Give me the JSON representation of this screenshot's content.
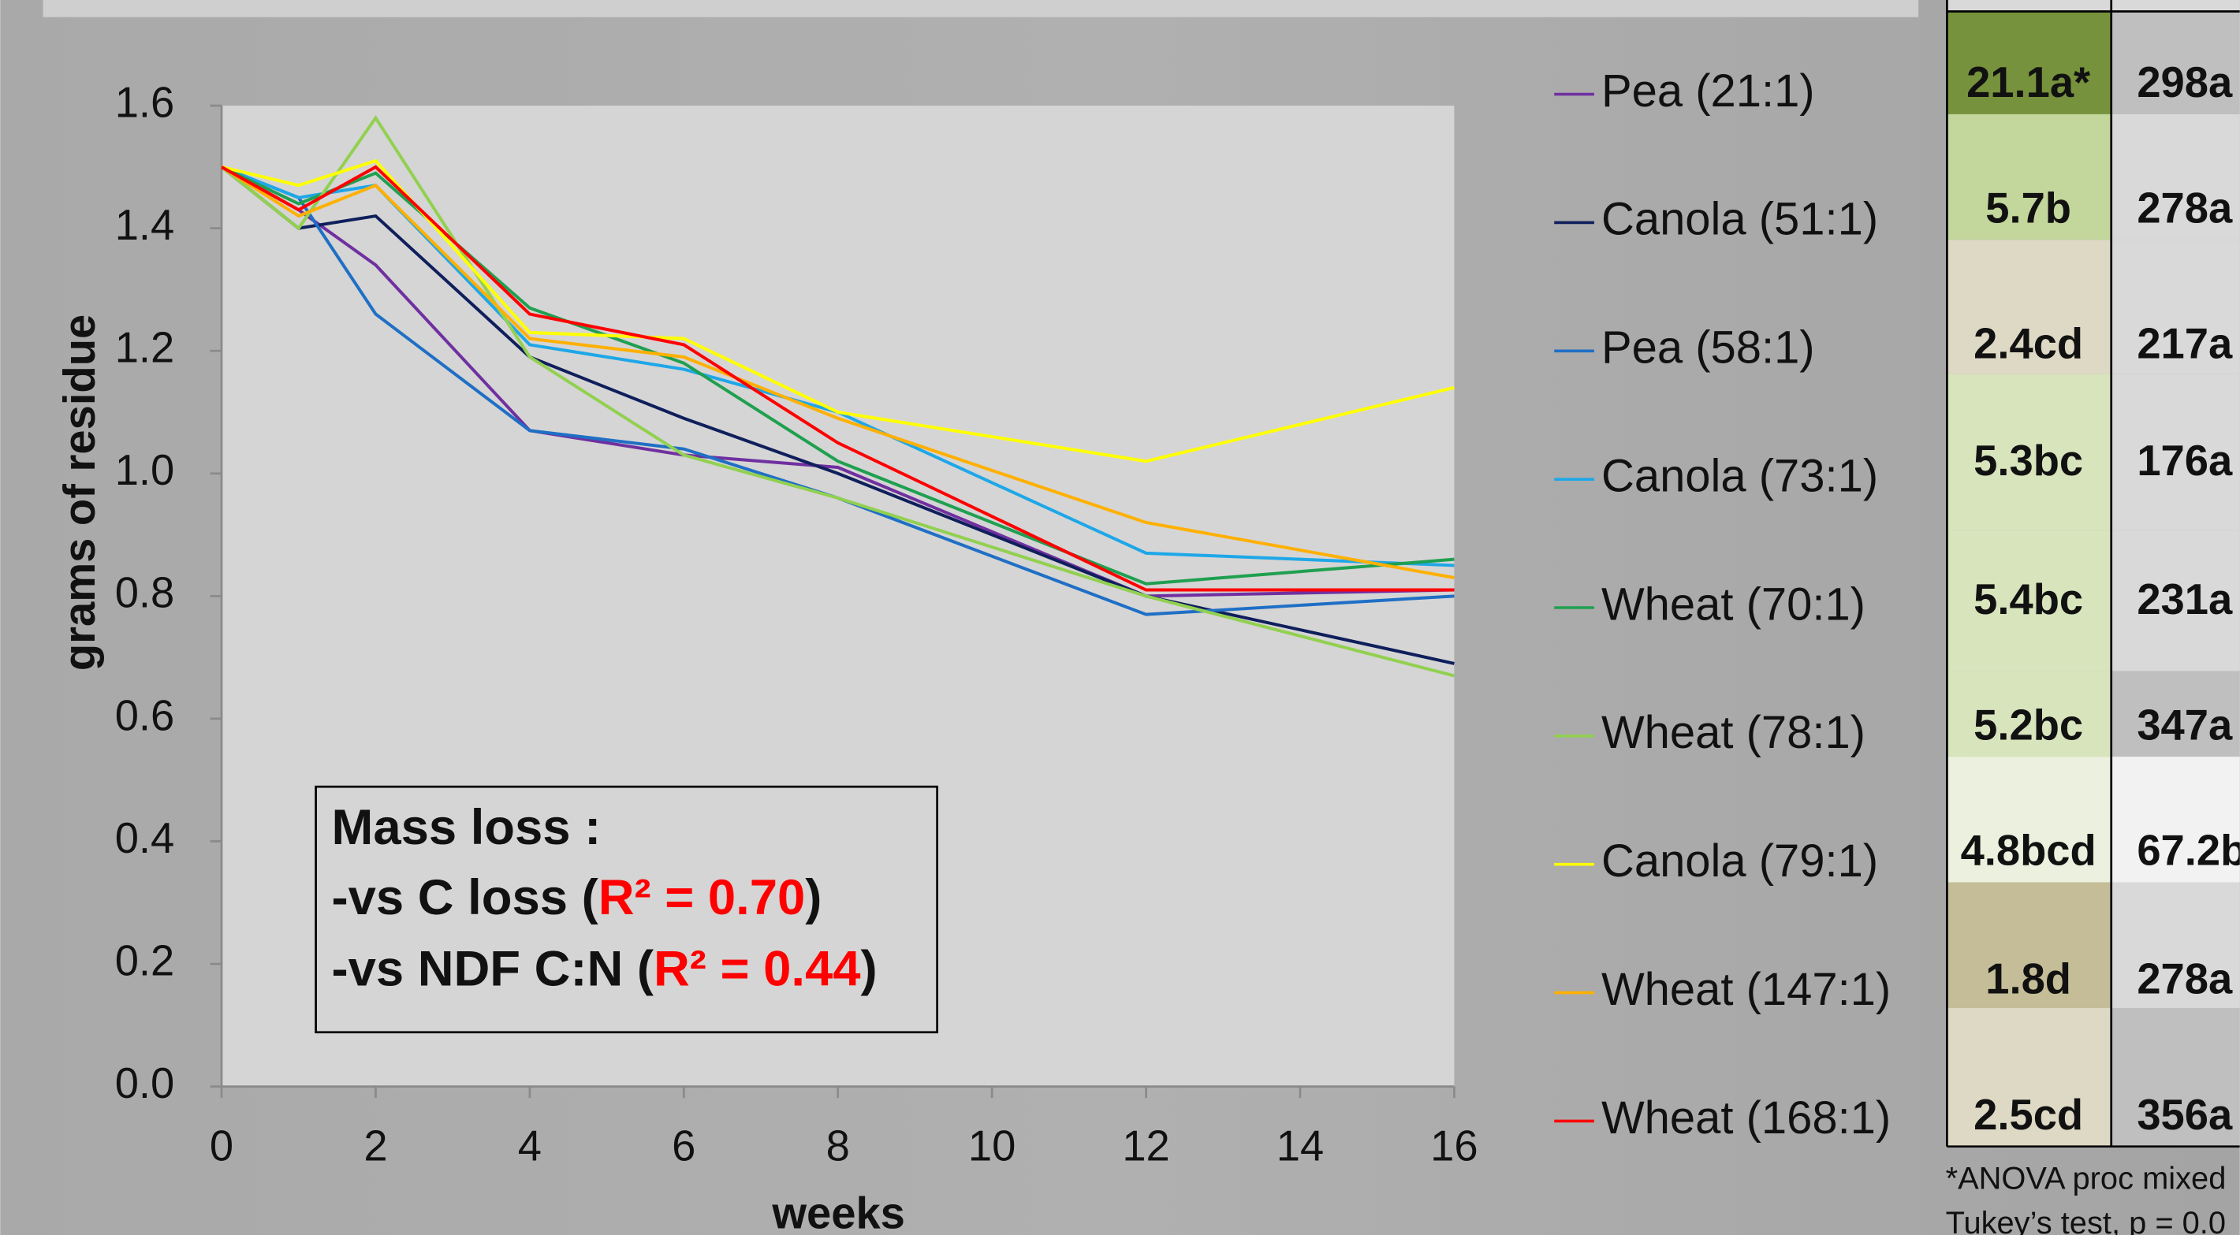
{
  "chart_data": {
    "type": "line",
    "x": [
      0,
      1,
      2,
      4,
      6,
      8,
      12,
      16
    ],
    "xlim": [
      0,
      16
    ],
    "xticks": [
      0,
      2,
      4,
      6,
      8,
      10,
      12,
      14,
      16
    ],
    "ylim": [
      0,
      1.6
    ],
    "yticks": [
      {
        "value": 0,
        "label": "0.0"
      },
      0.2,
      0.4,
      0.6,
      0.8,
      {
        "value": 1,
        "label": "1.0"
      },
      1.2,
      1.4,
      1.6
    ],
    "x_label": "weeks",
    "y_label": "grams of residue",
    "grid": false,
    "series": [
      {
        "name": "Pea (21:1)",
        "color": "#7030a0",
        "values": [
          1.5,
          1.43,
          1.34,
          1.07,
          1.03,
          1.01,
          0.8,
          0.81
        ]
      },
      {
        "name": "Canola (51:1)",
        "color": "#0f1f5c",
        "values": [
          1.5,
          1.4,
          1.42,
          1.19,
          1.09,
          1.0,
          0.8,
          0.69
        ]
      },
      {
        "name": "Pea (58:1)",
        "color": "#1f6fc5",
        "values": [
          1.5,
          1.45,
          1.26,
          1.07,
          1.04,
          0.96,
          0.77,
          0.8
        ]
      },
      {
        "name": "Canola (73:1)",
        "color": "#1ea7e8",
        "values": [
          1.5,
          1.45,
          1.47,
          1.21,
          1.17,
          1.1,
          0.87,
          0.85
        ]
      },
      {
        "name": "Wheat (70:1)",
        "color": "#1fa050",
        "values": [
          1.5,
          1.44,
          1.49,
          1.27,
          1.18,
          1.02,
          0.82,
          0.86
        ]
      },
      {
        "name": "Wheat (78:1)",
        "color": "#92d050",
        "values": [
          1.5,
          1.4,
          1.58,
          1.19,
          1.03,
          0.96,
          0.8,
          0.67
        ]
      },
      {
        "name": "Canola (79:1)",
        "color": "#ffff00",
        "values": [
          1.5,
          1.47,
          1.51,
          1.23,
          1.22,
          1.1,
          1.02,
          1.14
        ]
      },
      {
        "name": "Wheat (147:1)",
        "color": "#ffb000",
        "values": [
          1.5,
          1.42,
          1.47,
          1.22,
          1.19,
          1.09,
          0.92,
          0.83
        ]
      },
      {
        "name": "Wheat (168:1)",
        "color": "#ff0000",
        "values": [
          1.5,
          1.43,
          1.5,
          1.26,
          1.21,
          1.05,
          0.81,
          0.81
        ]
      }
    ],
    "annotation": {
      "title": "Mass loss :",
      "lines": [
        [
          "-vs C loss (",
          "R² = 0.70",
          ")"
        ],
        [
          "-vs NDF C:N (",
          "R² = 0.44",
          ")"
        ]
      ]
    }
  },
  "table": {
    "rows": [
      [
        "21.1a*",
        "298a"
      ],
      [
        "5.7b",
        "278a"
      ],
      [
        "2.4cd",
        "217a"
      ],
      [
        "5.3bc",
        "176a"
      ],
      [
        "5.4bc",
        "231a"
      ],
      [
        "5.2bc",
        "347a"
      ],
      [
        "4.8bcd",
        "67.2b"
      ],
      [
        "1.8d",
        "278a"
      ],
      [
        "2.5cd",
        "356a"
      ]
    ],
    "footnote": [
      "*ANOVA proc mixed",
      "Tukey’s test, p = 0.0"
    ]
  }
}
